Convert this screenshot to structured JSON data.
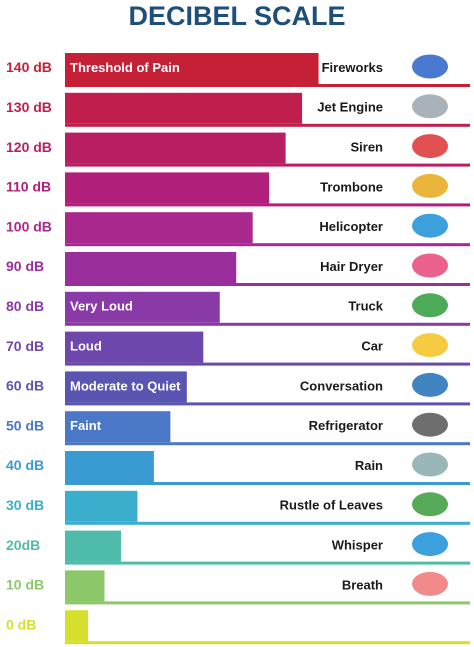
{
  "chart_data": {
    "type": "bar",
    "title": "DECIBEL SCALE",
    "categories": [
      "140 dB",
      "130 dB",
      "120 dB",
      "110 dB",
      "100 dB",
      "90 dB",
      "80 dB",
      "70 dB",
      "60 dB",
      "50 dB",
      "40 dB",
      "30 dB",
      "20dB",
      "10 dB",
      "0 dB"
    ],
    "values": [
      140,
      130,
      120,
      110,
      100,
      90,
      80,
      70,
      60,
      50,
      40,
      30,
      20,
      10,
      0
    ],
    "colors": [
      "#c62036",
      "#c01f4e",
      "#b81f62",
      "#b0207a",
      "#a8288e",
      "#9a2f9c",
      "#8a3aa6",
      "#6e47ac",
      "#5a55b0",
      "#4a78c6",
      "#3a9ad2",
      "#3aaecc",
      "#4fbcab",
      "#8cc76a",
      "#d6e02c"
    ],
    "sources": [
      "Fireworks",
      "Jet Engine",
      "Siren",
      "Trombone",
      "Helicopter",
      "Hair Dryer",
      "Truck",
      "Car",
      "Conversation",
      "Refrigerator",
      "Rain",
      "Rustle of Leaves",
      "Whisper",
      "Breath",
      null
    ],
    "annotations": [
      "Threshold of Pain",
      null,
      null,
      null,
      null,
      null,
      "Very Loud",
      "Loud",
      "Moderate to Quiet",
      "Faint",
      null,
      null,
      null,
      null,
      null
    ],
    "xlim": [
      -14,
      232
    ]
  }
}
